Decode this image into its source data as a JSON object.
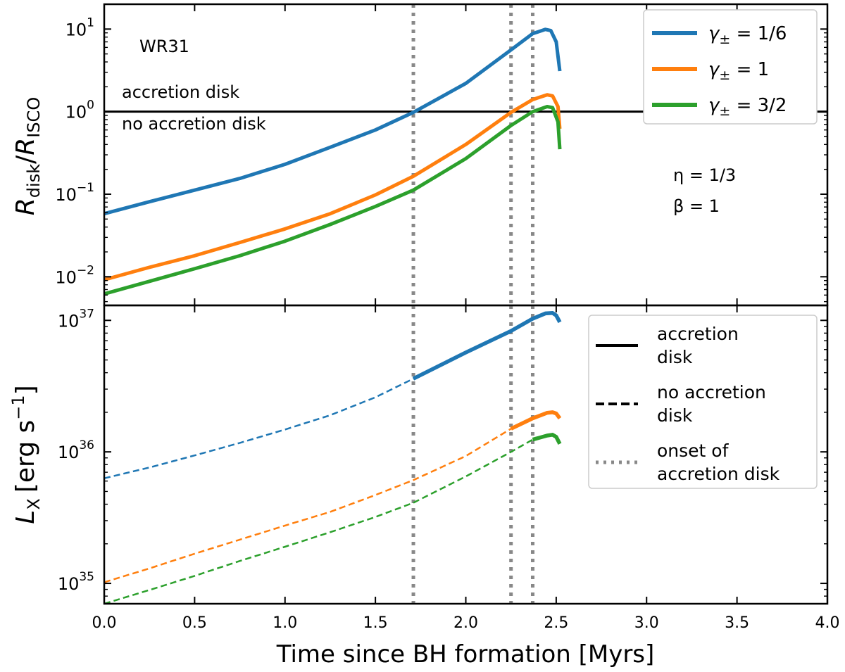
{
  "chart_data": [
    {
      "type": "line",
      "panel": "top",
      "ylabel": {
        "base": "R",
        "base_sub": "disk",
        "sep": "/",
        "base2": "R",
        "base2_sub": "ISCO"
      },
      "yscale": "log",
      "ylim": [
        0.0045,
        20
      ],
      "xlim": [
        0,
        4.0
      ],
      "y_ticks": [
        {
          "value": 0.01,
          "base": "10",
          "exp": "−2"
        },
        {
          "value": 0.1,
          "base": "10",
          "exp": "−1"
        },
        {
          "value": 1,
          "base": "10",
          "exp": "0"
        },
        {
          "value": 10,
          "base": "10",
          "exp": "1"
        }
      ],
      "annotations": {
        "star": "WR31",
        "above_line": "accretion disk",
        "below_line": "no accretion disk",
        "eta": "η = 1/3",
        "beta": "β = 1"
      },
      "hline": {
        "y": 1,
        "color": "#000000"
      },
      "legend": {
        "placement": "top-right",
        "entries": [
          {
            "label": "γ± = 1/6",
            "color": "#1f77b4"
          },
          {
            "label": "γ± = 1",
            "color": "#ff7f0e"
          },
          {
            "label": "γ± = 3/2",
            "color": "#2ca02c"
          }
        ]
      },
      "series": [
        {
          "name": "γ± = 1/6",
          "color": "#1f77b4",
          "x": [
            0,
            0.25,
            0.5,
            0.75,
            1.0,
            1.25,
            1.5,
            1.71,
            2.0,
            2.25,
            2.37,
            2.44,
            2.47,
            2.5,
            2.52
          ],
          "y": [
            0.058,
            0.081,
            0.112,
            0.155,
            0.23,
            0.37,
            0.6,
            0.98,
            2.2,
            5.6,
            8.8,
            9.9,
            9.6,
            7.0,
            3.1
          ]
        },
        {
          "name": "γ± = 1",
          "color": "#ff7f0e",
          "x": [
            0,
            0.25,
            0.5,
            0.75,
            1.0,
            1.25,
            1.5,
            1.71,
            2.0,
            2.25,
            2.37,
            2.45,
            2.48,
            2.51,
            2.52
          ],
          "y": [
            0.0092,
            0.013,
            0.018,
            0.026,
            0.038,
            0.058,
            0.098,
            0.165,
            0.4,
            0.98,
            1.4,
            1.6,
            1.55,
            1.15,
            0.62
          ]
        },
        {
          "name": "γ± = 3/2",
          "color": "#2ca02c",
          "x": [
            0,
            0.25,
            0.5,
            0.75,
            1.0,
            1.25,
            1.5,
            1.71,
            2.0,
            2.25,
            2.37,
            2.45,
            2.48,
            2.51,
            2.52
          ],
          "y": [
            0.0062,
            0.0088,
            0.0125,
            0.018,
            0.027,
            0.043,
            0.071,
            0.112,
            0.27,
            0.68,
            1.0,
            1.15,
            1.12,
            0.75,
            0.35
          ]
        }
      ]
    },
    {
      "type": "line",
      "panel": "bottom",
      "ylabel": {
        "base": "L",
        "base_sub": "X",
        "unit": "[erg s",
        "unit_exp": "−1",
        "unit_end": "]"
      },
      "yscale": "log",
      "ylim": [
        7e+34,
        1.3e+37
      ],
      "xlim": [
        0,
        4.0
      ],
      "xlabel": "Time since BH formation [Myrs]",
      "x_ticks": [
        "0.0",
        "0.5",
        "1.0",
        "1.5",
        "2.0",
        "2.5",
        "3.0",
        "3.5",
        "4.0"
      ],
      "y_ticks": [
        {
          "value": 1e+35,
          "base": "10",
          "exp": "35"
        },
        {
          "value": 1e+36,
          "base": "10",
          "exp": "36"
        },
        {
          "value": 1e+37,
          "base": "10",
          "exp": "37"
        }
      ],
      "vlines": [
        1.71,
        2.25,
        2.37
      ],
      "legend": {
        "placement": "right",
        "entries": [
          {
            "style": "solid",
            "lines": [
              "accretion",
              "disk"
            ]
          },
          {
            "style": "dashed",
            "lines": [
              "no accretion",
              "disk"
            ]
          },
          {
            "style": "dotted",
            "lines": [
              "onset of",
              "accretion disk"
            ]
          }
        ]
      },
      "series": [
        {
          "name": "γ± = 1/6",
          "color": "#1f77b4",
          "onset": 1.71,
          "x": [
            0,
            0.25,
            0.5,
            0.75,
            1.0,
            1.25,
            1.5,
            1.71,
            2.0,
            2.25,
            2.37,
            2.44,
            2.48,
            2.5,
            2.52
          ],
          "y": [
            6.3e+35,
            7.6e+35,
            9.4e+35,
            1.17e+36,
            1.48e+36,
            1.9e+36,
            2.6e+36,
            3.6e+36,
            5.7e+36,
            8.3e+36,
            1.03e+37,
            1.13e+37,
            1.14e+37,
            1.09e+37,
            9.7e+36
          ]
        },
        {
          "name": "γ± = 1",
          "color": "#ff7f0e",
          "onset": 2.25,
          "x": [
            0,
            0.25,
            0.5,
            0.75,
            1.0,
            1.25,
            1.5,
            1.71,
            2.0,
            2.25,
            2.37,
            2.45,
            2.48,
            2.5,
            2.52
          ],
          "y": [
            1.02e+35,
            1.3e+35,
            1.68e+35,
            2.15e+35,
            2.75e+35,
            3.5e+35,
            4.7e+35,
            6.1e+35,
            9.3e+35,
            1.5e+36,
            1.8e+36,
            1.98e+36,
            2e+36,
            1.96e+36,
            1.8e+36
          ]
        },
        {
          "name": "γ± = 3/2",
          "color": "#2ca02c",
          "onset": 2.37,
          "x": [
            0,
            0.25,
            0.5,
            0.75,
            1.0,
            1.25,
            1.5,
            1.71,
            2.0,
            2.25,
            2.37,
            2.45,
            2.48,
            2.5,
            2.52
          ],
          "y": [
            7e+34,
            8.9e+34,
            1.14e+35,
            1.48e+35,
            1.9e+35,
            2.45e+35,
            3.2e+35,
            4.1e+35,
            6.5e+35,
            1e+36,
            1.24e+36,
            1.33e+36,
            1.35e+36,
            1.3e+36,
            1.15e+36
          ]
        }
      ]
    }
  ]
}
